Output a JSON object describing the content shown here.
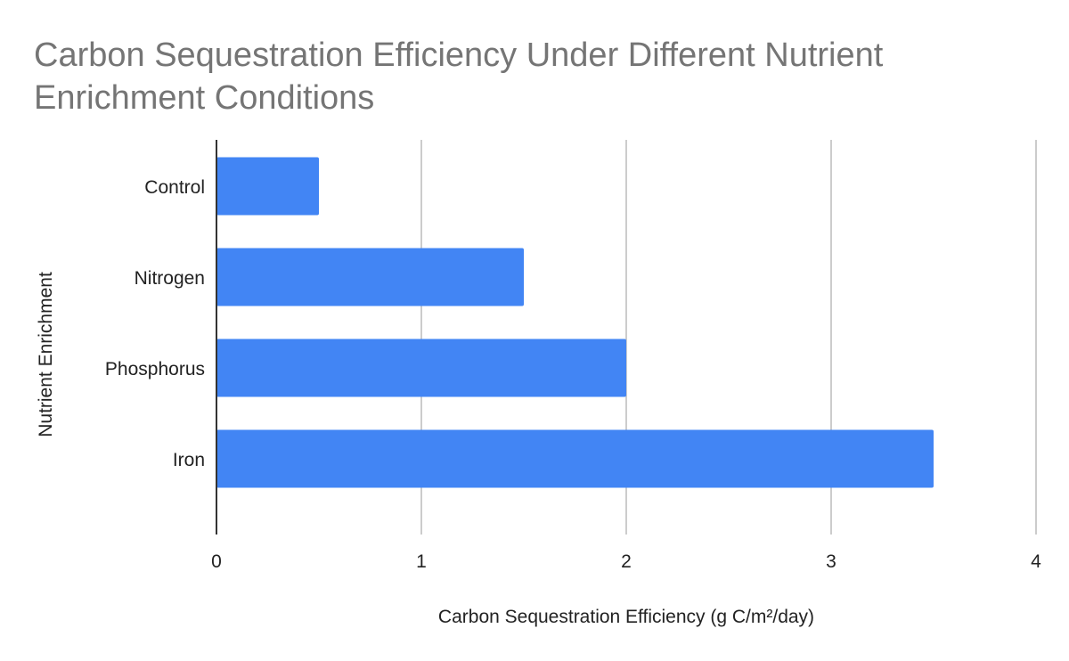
{
  "chart_data": {
    "type": "bar",
    "orientation": "horizontal",
    "title_lines": [
      "Carbon Sequestration Efficiency Under Different Nutrient",
      "Enrichment Conditions"
    ],
    "xlabel": "Carbon Sequestration Efficiency (g C/m²/day)",
    "ylabel": "Nutrient Enrichment",
    "categories": [
      "Control",
      "Nitrogen",
      "Phosphorus",
      "Iron"
    ],
    "values": [
      0.5,
      1.5,
      2.0,
      3.5
    ],
    "xlim": [
      0,
      4
    ],
    "xticks": [
      0,
      1,
      2,
      3,
      4
    ],
    "grid": true,
    "legend": "none",
    "bar_color": "#4285f4",
    "grid_color": "#cccccc",
    "axis_color": "#333333",
    "title_color": "#757575"
  }
}
